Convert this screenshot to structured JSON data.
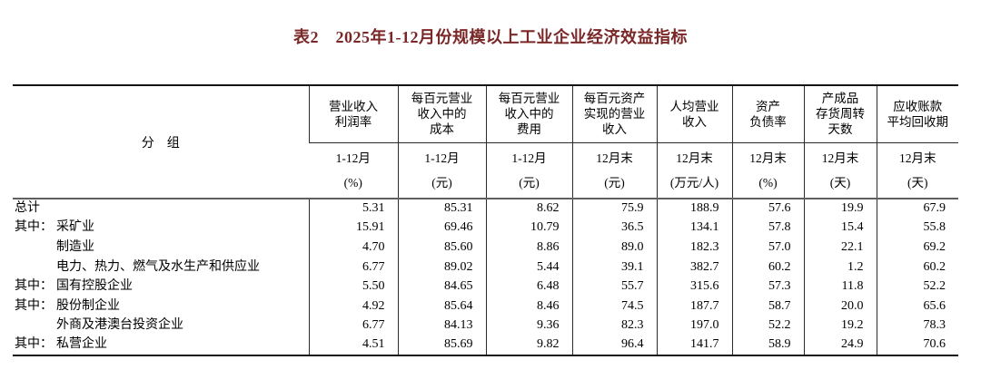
{
  "page": {
    "title": "表2　2025年1-12月份规模以上工业企业经济效益指标"
  },
  "colors": {
    "title_text": "#7a2727",
    "outer_border": "#151515",
    "inner_border": "#2b2b2b",
    "header_bottom_rule": "#5f5f5f"
  },
  "table": {
    "group_header": "分　组",
    "columns": [
      {
        "name": "营业收入\n利润率",
        "period": "1-12月",
        "unit": "(%)"
      },
      {
        "name": "每百元营业\n收入中的\n成本",
        "period": "1-12月",
        "unit": "(元)"
      },
      {
        "name": "每百元营业\n收入中的\n费用",
        "period": "1-12月",
        "unit": "(元)"
      },
      {
        "name": "每百元资产\n实现的营业\n收入",
        "period": "12月末",
        "unit": "(元)"
      },
      {
        "name": "人均营业\n收入",
        "period": "12月末",
        "unit": "(万元/人)"
      },
      {
        "name": "资产\n负债率",
        "period": "12月末",
        "unit": "(%)"
      },
      {
        "name": "产成品\n存货周转\n天数",
        "period": "12月末",
        "unit": "(天)"
      },
      {
        "name": "应收账款\n平均回收期",
        "period": "12月末",
        "unit": "(天)"
      }
    ],
    "rows": [
      {
        "prefix": "",
        "label": "总计",
        "indent": false,
        "values": [
          "5.31",
          "85.31",
          "8.62",
          "75.9",
          "188.9",
          "57.6",
          "19.9",
          "67.9"
        ]
      },
      {
        "prefix": "其中：",
        "label": "采矿业",
        "indent": false,
        "values": [
          "15.91",
          "69.46",
          "10.79",
          "36.5",
          "134.1",
          "57.8",
          "15.4",
          "55.8"
        ]
      },
      {
        "prefix": "",
        "label": "制造业",
        "indent": true,
        "values": [
          "4.70",
          "85.60",
          "8.86",
          "89.0",
          "182.3",
          "57.0",
          "22.1",
          "69.2"
        ]
      },
      {
        "prefix": "",
        "label": "电力、热力、燃气及水生产和供应业",
        "indent": true,
        "values": [
          "6.77",
          "89.02",
          "5.44",
          "39.1",
          "382.7",
          "60.2",
          "1.2",
          "60.2"
        ]
      },
      {
        "prefix": "其中：",
        "label": "国有控股企业",
        "indent": false,
        "values": [
          "5.50",
          "84.65",
          "6.48",
          "55.7",
          "315.6",
          "57.3",
          "11.8",
          "52.2"
        ]
      },
      {
        "prefix": "其中：",
        "label": "股份制企业",
        "indent": false,
        "values": [
          "4.92",
          "85.64",
          "8.46",
          "74.5",
          "187.7",
          "58.7",
          "20.0",
          "65.6"
        ]
      },
      {
        "prefix": "",
        "label": "外商及港澳台投资企业",
        "indent": true,
        "values": [
          "6.77",
          "84.13",
          "9.36",
          "82.3",
          "197.0",
          "52.2",
          "19.2",
          "78.3"
        ]
      },
      {
        "prefix": "其中：",
        "label": "私营企业",
        "indent": false,
        "values": [
          "4.51",
          "85.69",
          "9.82",
          "96.4",
          "141.7",
          "58.9",
          "24.9",
          "70.6"
        ]
      }
    ]
  }
}
